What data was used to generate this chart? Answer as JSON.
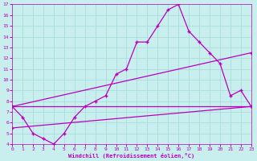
{
  "bg_color": "#c8eeee",
  "grid_color": "#a8dddd",
  "line_color": "#bb00bb",
  "xlabel": "Windchill (Refroidissement éolien,°C)",
  "xlim": [
    0,
    23
  ],
  "ylim": [
    4,
    17
  ],
  "xticks": [
    0,
    1,
    2,
    3,
    4,
    5,
    6,
    7,
    8,
    9,
    10,
    11,
    12,
    13,
    14,
    15,
    16,
    17,
    18,
    19,
    20,
    21,
    22,
    23
  ],
  "yticks": [
    4,
    5,
    6,
    7,
    8,
    9,
    10,
    11,
    12,
    13,
    14,
    15,
    16,
    17
  ],
  "curve1_x": [
    0,
    1,
    2,
    3,
    4,
    5,
    6,
    7,
    8,
    9,
    10,
    11,
    12,
    13,
    14,
    15,
    16,
    17,
    18,
    19,
    20,
    21,
    22,
    23
  ],
  "curve1_y": [
    7.5,
    6.5,
    5.0,
    4.5,
    4.0,
    5.0,
    6.5,
    7.5,
    8.0,
    8.5,
    10.5,
    11.0,
    13.5,
    13.5,
    15.0,
    16.5,
    17.0,
    14.5,
    13.5,
    12.5,
    11.5,
    8.5,
    9.0,
    7.5
  ],
  "curve2_x": [
    0,
    23
  ],
  "curve2_y": [
    7.5,
    7.5
  ],
  "curve3_x": [
    0,
    23
  ],
  "curve3_y": [
    7.5,
    12.5
  ],
  "curve4_x": [
    0,
    23
  ],
  "curve4_y": [
    5.5,
    7.5
  ]
}
